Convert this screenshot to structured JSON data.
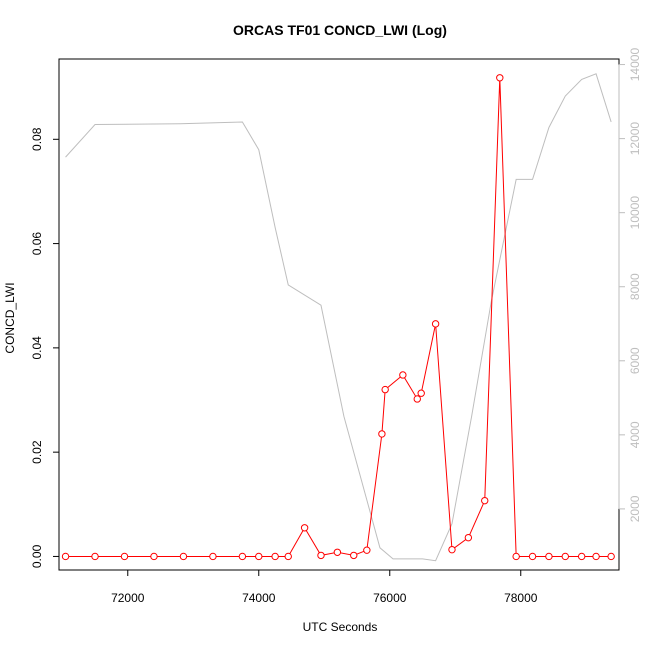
{
  "chart_data": {
    "type": "line",
    "title": "ORCAS TF01 CONCD_LWI (Log)",
    "xlabel": "UTC Seconds",
    "ylabel": "CONCD_LWI",
    "xlim": [
      70950,
      79500
    ],
    "ylim": [
      -0.0026,
      0.0954
    ],
    "y2lim": [
      350,
      14150
    ],
    "x_ticks": [
      72000,
      74000,
      76000,
      78000
    ],
    "y_ticks": [
      0.0,
      0.02,
      0.04,
      0.06,
      0.08
    ],
    "y_tick_labels": [
      "0.00",
      "0.02",
      "0.04",
      "0.06",
      "0.08"
    ],
    "y2_ticks": [
      2000,
      4000,
      6000,
      8000,
      10000,
      12000,
      14000
    ],
    "grid": false,
    "legend": "none",
    "colors": {
      "primary": "#ff0000",
      "secondary": "#bebebe",
      "secondary_axis": "#bebebe",
      "text": "#000000"
    },
    "series": [
      {
        "axis": "left",
        "style": "line+points",
        "x": [
          71050,
          71500,
          71950,
          72400,
          72850,
          73300,
          73750,
          74000,
          74250,
          74450,
          74700,
          74950,
          75200,
          75450,
          75650,
          75880,
          75930,
          76200,
          76420,
          76480,
          76700,
          76950,
          77200,
          77450,
          77680,
          77930,
          78180,
          78430,
          78680,
          78930,
          79150,
          79380
        ],
        "y": [
          0.0,
          0.0,
          0.0,
          0.0,
          0.0,
          0.0,
          0.0,
          0.0,
          0.0,
          0.0,
          0.0055,
          0.0002,
          0.0008,
          0.0002,
          0.0012,
          0.0235,
          0.032,
          0.0348,
          0.0302,
          0.0313,
          0.0446,
          0.0013,
          0.0036,
          0.0107,
          0.0918,
          0.0,
          0.0,
          0.0,
          0.0,
          0.0,
          0.0,
          0.0
        ]
      },
      {
        "axis": "right",
        "style": "line",
        "x": [
          71050,
          71500,
          72800,
          73750,
          74000,
          74250,
          74450,
          74950,
          75300,
          75850,
          76050,
          76500,
          76700,
          76950,
          77250,
          77550,
          77930,
          78180,
          78430,
          78680,
          78930,
          79150,
          79380
        ],
        "y": [
          11500,
          12380,
          12400,
          12450,
          11700,
          9600,
          8050,
          7500,
          4500,
          950,
          650,
          650,
          600,
          1600,
          4500,
          7600,
          10900,
          10900,
          12300,
          13150,
          13600,
          13750,
          12450
        ]
      }
    ]
  }
}
